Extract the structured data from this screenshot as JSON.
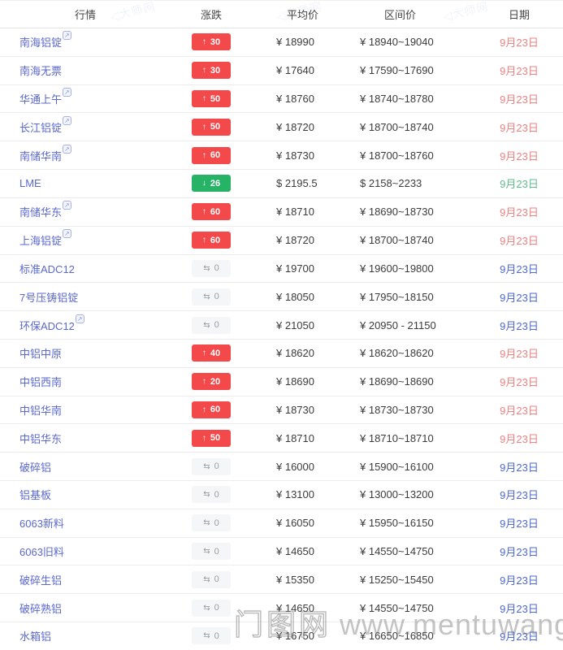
{
  "table": {
    "headers": {
      "market": "行情",
      "change": "涨跌",
      "average_price": "平均价",
      "range_price": "区间价",
      "date": "日期"
    },
    "rows": [
      {
        "name": "南海铝锭",
        "has_icon": true,
        "change": {
          "dir": "up",
          "arrow": "↑",
          "value": "30"
        },
        "avg": "¥ 18990",
        "range": "¥ 18940~19040",
        "date": "9月23日",
        "date_color": "red"
      },
      {
        "name": "南海无票",
        "has_icon": false,
        "change": {
          "dir": "up",
          "arrow": "↑",
          "value": "30"
        },
        "avg": "¥ 17640",
        "range": "¥ 17590~17690",
        "date": "9月23日",
        "date_color": "red"
      },
      {
        "name": "华通上午",
        "has_icon": true,
        "change": {
          "dir": "up",
          "arrow": "↑",
          "value": "50"
        },
        "avg": "¥ 18760",
        "range": "¥ 18740~18780",
        "date": "9月23日",
        "date_color": "red"
      },
      {
        "name": "长江铝锭",
        "has_icon": true,
        "change": {
          "dir": "up",
          "arrow": "↑",
          "value": "50"
        },
        "avg": "¥ 18720",
        "range": "¥ 18700~18740",
        "date": "9月23日",
        "date_color": "red"
      },
      {
        "name": "南储华南",
        "has_icon": true,
        "change": {
          "dir": "up",
          "arrow": "↑",
          "value": "60"
        },
        "avg": "¥ 18730",
        "range": "¥ 18700~18760",
        "date": "9月23日",
        "date_color": "red"
      },
      {
        "name": "LME",
        "has_icon": false,
        "change": {
          "dir": "down",
          "arrow": "↓",
          "value": "26"
        },
        "avg": "$ 2195.5",
        "range": "$ 2158~2233",
        "date": "9月23日",
        "date_color": "green"
      },
      {
        "name": "南储华东",
        "has_icon": true,
        "change": {
          "dir": "up",
          "arrow": "↑",
          "value": "60"
        },
        "avg": "¥ 18710",
        "range": "¥ 18690~18730",
        "date": "9月23日",
        "date_color": "red"
      },
      {
        "name": "上海铝锭",
        "has_icon": true,
        "change": {
          "dir": "up",
          "arrow": "↑",
          "value": "60"
        },
        "avg": "¥ 18720",
        "range": "¥ 18700~18740",
        "date": "9月23日",
        "date_color": "red"
      },
      {
        "name": "标准ADC12",
        "has_icon": false,
        "change": {
          "dir": "flat",
          "arrow": "⇆",
          "value": "0"
        },
        "avg": "¥ 19700",
        "range": "¥ 19600~19800",
        "date": "9月23日",
        "date_color": "blue"
      },
      {
        "name": "7号压铸铝锭",
        "has_icon": false,
        "change": {
          "dir": "flat",
          "arrow": "⇆",
          "value": "0"
        },
        "avg": "¥ 18050",
        "range": "¥ 17950~18150",
        "date": "9月23日",
        "date_color": "blue"
      },
      {
        "name": "环保ADC12",
        "has_icon": true,
        "change": {
          "dir": "flat",
          "arrow": "⇆",
          "value": "0"
        },
        "avg": "¥ 21050",
        "range": "¥ 20950 - 21150",
        "date": "9月23日",
        "date_color": "blue"
      },
      {
        "name": "中铝中原",
        "has_icon": false,
        "change": {
          "dir": "up",
          "arrow": "↑",
          "value": "40"
        },
        "avg": "¥ 18620",
        "range": "¥ 18620~18620",
        "date": "9月23日",
        "date_color": "red"
      },
      {
        "name": "中铝西南",
        "has_icon": false,
        "change": {
          "dir": "up",
          "arrow": "↑",
          "value": "20"
        },
        "avg": "¥ 18690",
        "range": "¥ 18690~18690",
        "date": "9月23日",
        "date_color": "red"
      },
      {
        "name": "中铝华南",
        "has_icon": false,
        "change": {
          "dir": "up",
          "arrow": "↑",
          "value": "60"
        },
        "avg": "¥ 18730",
        "range": "¥ 18730~18730",
        "date": "9月23日",
        "date_color": "red"
      },
      {
        "name": "中铝华东",
        "has_icon": false,
        "change": {
          "dir": "up",
          "arrow": "↑",
          "value": "50"
        },
        "avg": "¥ 18710",
        "range": "¥ 18710~18710",
        "date": "9月23日",
        "date_color": "red"
      },
      {
        "name": "破碎铝",
        "has_icon": false,
        "change": {
          "dir": "flat",
          "arrow": "⇆",
          "value": "0"
        },
        "avg": "¥ 16000",
        "range": "¥ 15900~16100",
        "date": "9月23日",
        "date_color": "blue"
      },
      {
        "name": "铝基板",
        "has_icon": false,
        "change": {
          "dir": "flat",
          "arrow": "⇆",
          "value": "0"
        },
        "avg": "¥ 13100",
        "range": "¥ 13000~13200",
        "date": "9月23日",
        "date_color": "blue"
      },
      {
        "name": "6063新料",
        "has_icon": false,
        "change": {
          "dir": "flat",
          "arrow": "⇆",
          "value": "0"
        },
        "avg": "¥ 16050",
        "range": "¥ 15950~16150",
        "date": "9月23日",
        "date_color": "blue"
      },
      {
        "name": "6063旧料",
        "has_icon": false,
        "change": {
          "dir": "flat",
          "arrow": "⇆",
          "value": "0"
        },
        "avg": "¥ 14650",
        "range": "¥ 14550~14750",
        "date": "9月23日",
        "date_color": "blue"
      },
      {
        "name": "破碎生铝",
        "has_icon": false,
        "change": {
          "dir": "flat",
          "arrow": "⇆",
          "value": "0"
        },
        "avg": "¥ 15350",
        "range": "¥ 15250~15450",
        "date": "9月23日",
        "date_color": "blue"
      },
      {
        "name": "破碎熟铝",
        "has_icon": false,
        "change": {
          "dir": "flat",
          "arrow": "⇆",
          "value": "0"
        },
        "avg": "¥ 14650",
        "range": "¥ 14550~14750",
        "date": "9月23日",
        "date_color": "blue"
      },
      {
        "name": "水箱铝",
        "has_icon": false,
        "change": {
          "dir": "flat",
          "arrow": "⇆",
          "value": "0"
        },
        "avg": "¥ 16750",
        "range": "¥ 16650~16850",
        "date": "9月23日",
        "date_color": "blue"
      }
    ]
  },
  "watermarks": {
    "site_tile": "◁大师网",
    "bottom_site": "门图网",
    "bottom_url": "www.mentuwang.com"
  },
  "colors": {
    "up_badge": "#f4494b",
    "down_badge": "#27b365",
    "flat_badge_bg": "#f5f6f8",
    "quote_link": "#5a68cf",
    "date_red": "#ee8181",
    "date_blue": "#4d68d8",
    "date_green": "#5fbd8c"
  }
}
